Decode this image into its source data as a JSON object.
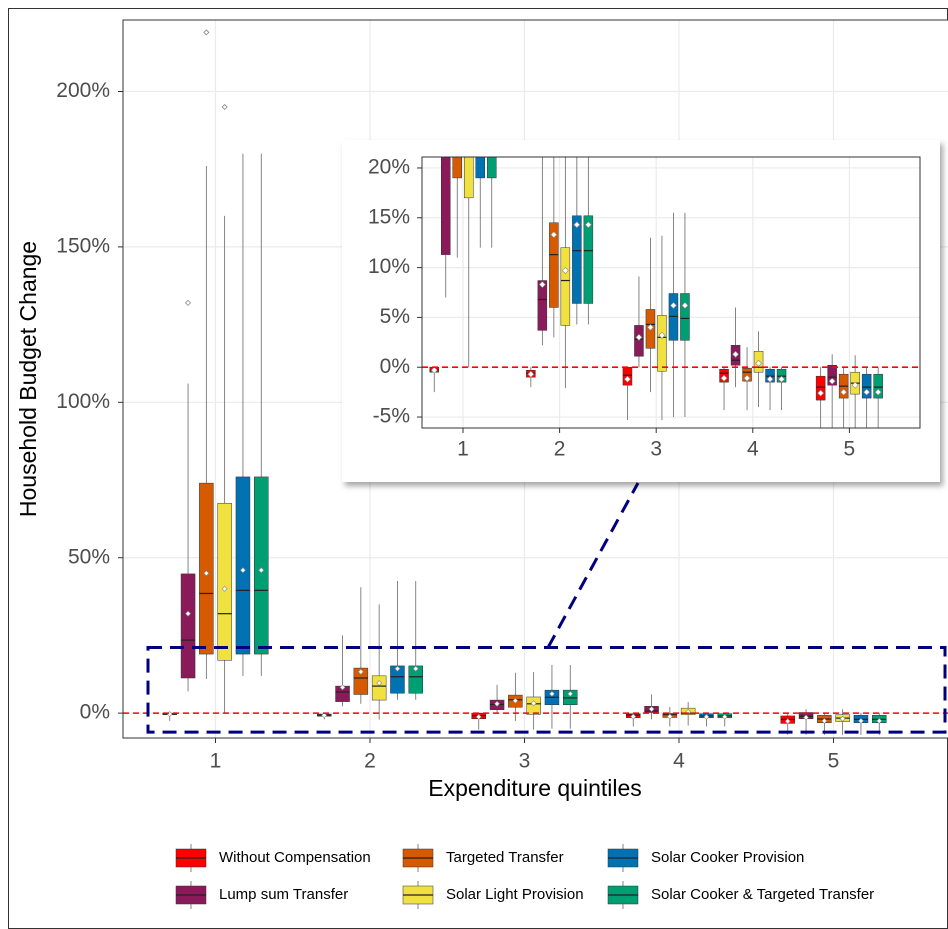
{
  "chart_data": {
    "type": "box",
    "x_label": "Expenditure quintiles",
    "y_label": "Household Budget Change",
    "categories": [
      "1",
      "2",
      "3",
      "4",
      "5"
    ],
    "ylim": [
      -8,
      223
    ],
    "yticks": [
      {
        "value": 0,
        "label": "0%"
      },
      {
        "value": 50,
        "label": "50%"
      },
      {
        "value": 100,
        "label": "100%"
      },
      {
        "value": 150,
        "label": "150%"
      },
      {
        "value": 200,
        "label": "200%"
      }
    ],
    "grid": true,
    "reference_line": {
      "value": 0,
      "color": "#ff0000"
    },
    "legend": "bottom",
    "inset": {
      "ylim": [
        -6.1,
        21.1
      ],
      "yticks": [
        {
          "value": -5,
          "label": "-5%"
        },
        {
          "value": 0,
          "label": "0%"
        },
        {
          "value": 5,
          "label": "5%"
        },
        {
          "value": 10,
          "label": "10%"
        },
        {
          "value": 15,
          "label": "15%"
        },
        {
          "value": 20,
          "label": "20%"
        }
      ],
      "highlight_color": "#00007f"
    },
    "series": [
      {
        "name": "Without Compensation",
        "color": "#ff0000",
        "boxes": [
          {
            "low": -2.5,
            "q1": -0.5,
            "median": -0.3,
            "q3": 0,
            "high": 0,
            "mean": -0.3
          },
          {
            "low": -2,
            "q1": -1,
            "median": -0.6,
            "q3": -0.3,
            "high": 0,
            "mean": -0.7
          },
          {
            "low": -5.3,
            "q1": -1.8,
            "median": -0.8,
            "q3": 0,
            "high": 0,
            "mean": -1.2
          },
          {
            "low": -4.3,
            "q1": -1.5,
            "median": -0.6,
            "q3": -0.2,
            "high": 0,
            "mean": -1.1
          },
          {
            "low": -7,
            "q1": -3.3,
            "median": -2,
            "q3": -0.9,
            "high": 0,
            "mean": -2.6
          }
        ],
        "outliers": [
          [],
          [],
          [],
          [],
          []
        ]
      },
      {
        "name": "Lump sum Transfer",
        "color": "#8b1a5a",
        "boxes": [
          {
            "low": 7,
            "q1": 11.3,
            "median": 23.5,
            "q3": 44.8,
            "high": 106,
            "mean": 32
          },
          {
            "low": 2.2,
            "q1": 3.7,
            "median": 6.8,
            "q3": 8.7,
            "high": 25,
            "mean": 8.3
          },
          {
            "low": 0,
            "q1": 1.1,
            "median": 2.8,
            "q3": 4.2,
            "high": 9.1,
            "mean": 3
          },
          {
            "low": -2,
            "q1": 0.2,
            "median": 0.7,
            "q3": 2.2,
            "high": 6,
            "mean": 1.3
          },
          {
            "low": -7,
            "q1": -1.8,
            "median": -1,
            "q3": 0.2,
            "high": 1.3,
            "mean": -1.4
          }
        ],
        "outliers": [
          [
            132
          ],
          [],
          [],
          [],
          []
        ]
      },
      {
        "name": "Targeted Transfer",
        "color": "#d65a00",
        "boxes": [
          {
            "low": 11,
            "q1": 19,
            "median": 38.5,
            "q3": 74,
            "high": 176,
            "mean": 45
          },
          {
            "low": 3,
            "q1": 6,
            "median": 11.3,
            "q3": 14.5,
            "high": 40.5,
            "mean": 13.3
          },
          {
            "low": -2.5,
            "q1": 1.9,
            "median": 4.3,
            "q3": 5.8,
            "high": 13,
            "mean": 4
          },
          {
            "low": -4.3,
            "q1": -1.4,
            "median": -0.5,
            "q3": -0.1,
            "high": 2,
            "mean": -1.1
          },
          {
            "low": -7,
            "q1": -3.1,
            "median": -1.9,
            "q3": -0.7,
            "high": 0,
            "mean": -2.5
          }
        ],
        "outliers": [
          [
            219
          ],
          [],
          [],
          [],
          []
        ]
      },
      {
        "name": "Solar Light Provision",
        "color": "#f0e040",
        "boxes": [
          {
            "low": 0,
            "q1": 17,
            "median": 32,
            "q3": 67.5,
            "high": 160,
            "mean": 40
          },
          {
            "low": -2.1,
            "q1": 4.2,
            "median": 8.7,
            "q3": 12,
            "high": 35,
            "mean": 9.7
          },
          {
            "low": -5.3,
            "q1": -0.4,
            "median": 3,
            "q3": 5.2,
            "high": 13.2,
            "mean": 3.2
          },
          {
            "low": -4,
            "q1": -0.5,
            "median": 0,
            "q3": 1.6,
            "high": 3.6,
            "mean": 0.4
          },
          {
            "low": -7,
            "q1": -2.7,
            "median": -1.6,
            "q3": -0.5,
            "high": 1.2,
            "mean": -1.8
          }
        ],
        "outliers": [
          [
            195
          ],
          [],
          [],
          [],
          []
        ]
      },
      {
        "name": "Solar Cooker Provision",
        "color": "#0072b2",
        "boxes": [
          {
            "low": 12,
            "q1": 19,
            "median": 39.5,
            "q3": 76,
            "high": 180,
            "mean": 46
          },
          {
            "low": 4.3,
            "q1": 6.4,
            "median": 11.7,
            "q3": 15.2,
            "high": 42.5,
            "mean": 14.3
          },
          {
            "low": -5,
            "q1": 2.7,
            "median": 5.1,
            "q3": 7.4,
            "high": 15.5,
            "mean": 6.2
          },
          {
            "low": -4.3,
            "q1": -1.5,
            "median": -0.9,
            "q3": -0.2,
            "high": 0,
            "mean": -1.2
          },
          {
            "low": -7,
            "q1": -3.1,
            "median": -2,
            "q3": -0.7,
            "high": 0,
            "mean": -2.5
          }
        ],
        "outliers": [
          [],
          [],
          [],
          [],
          []
        ]
      },
      {
        "name": "Solar Cooker & Targeted Transfer",
        "color": "#009e73",
        "boxes": [
          {
            "low": 12,
            "q1": 19,
            "median": 39.5,
            "q3": 76,
            "high": 180,
            "mean": 46
          },
          {
            "low": 4.3,
            "q1": 6.4,
            "median": 11.7,
            "q3": 15.2,
            "high": 42.5,
            "mean": 14.3
          },
          {
            "low": -5,
            "q1": 2.7,
            "median": 4.9,
            "q3": 7.4,
            "high": 15.5,
            "mean": 6.2
          },
          {
            "low": -4.3,
            "q1": -1.5,
            "median": -0.9,
            "q3": -0.2,
            "high": 0,
            "mean": -1.2
          },
          {
            "low": -7,
            "q1": -3.1,
            "median": -2,
            "q3": -0.7,
            "high": 0,
            "mean": -2.5
          }
        ],
        "outliers": [
          [],
          [],
          [],
          [],
          []
        ]
      }
    ]
  }
}
